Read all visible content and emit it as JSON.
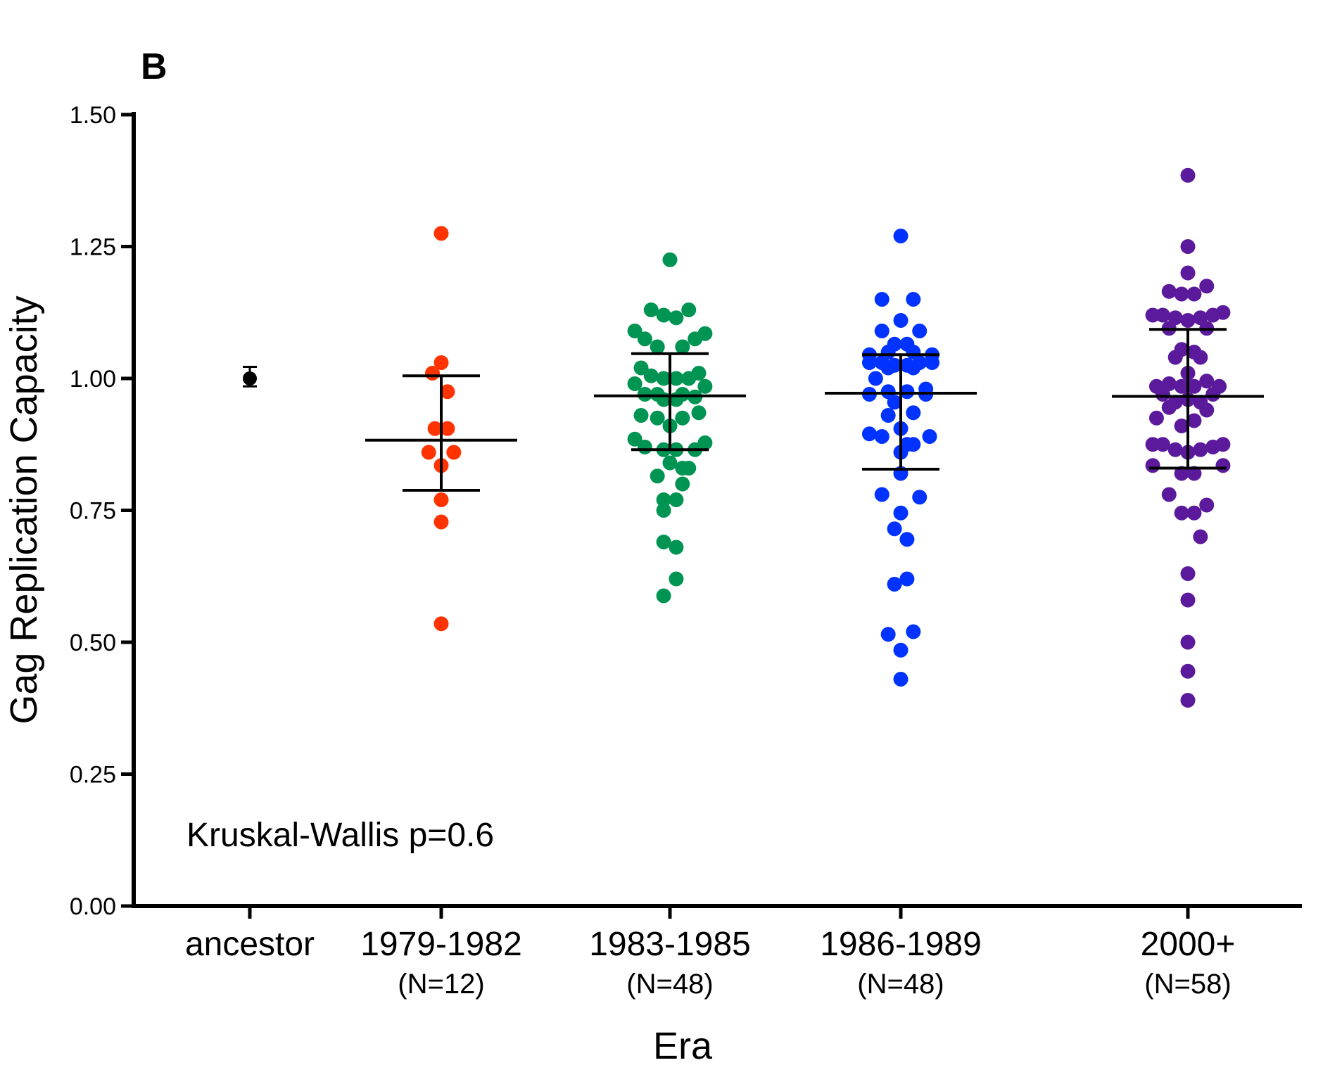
{
  "panel_label": "B",
  "annotation": "Kruskal-Wallis p=0.6",
  "chart_data": {
    "type": "scatter",
    "title": "",
    "xlabel": "Era",
    "ylabel": "Gag Replication Capacity",
    "ylim": [
      0,
      1.5
    ],
    "yticks": [
      "0.00",
      "0.25",
      "0.50",
      "0.75",
      "1.00",
      "1.25",
      "1.50"
    ],
    "grid": false,
    "categories": [
      {
        "label": "ancestor",
        "sublabel": ""
      },
      {
        "label": "1979-1982",
        "sublabel": "(N=12)"
      },
      {
        "label": "1983-1985",
        "sublabel": "(N=48)"
      },
      {
        "label": "1986-1989",
        "sublabel": "(N=48)"
      },
      {
        "label": "2000+",
        "sublabel": "(N=58)"
      }
    ],
    "series": [
      {
        "category": "ancestor",
        "color": "#000000",
        "points": [
          [
            0,
            1.0
          ]
        ],
        "mean": 1.003,
        "err_low": 0.985,
        "err_high": 1.022,
        "error_style": "small"
      },
      {
        "category": "1979-1982",
        "color": "#ff3300",
        "points": [
          [
            0,
            1.275
          ],
          [
            0,
            1.03
          ],
          [
            -0.07,
            1.01
          ],
          [
            0.05,
            0.975
          ],
          [
            -0.05,
            0.905
          ],
          [
            0.05,
            0.905
          ],
          [
            -0.1,
            0.86
          ],
          [
            0.1,
            0.86
          ],
          [
            0,
            0.835
          ],
          [
            0,
            0.77
          ],
          [
            0,
            0.728
          ],
          [
            0,
            0.535
          ]
        ],
        "mean": 0.883,
        "err_low": 0.788,
        "err_high": 1.005
      },
      {
        "category": "1983-1985",
        "color": "#009452",
        "points": [
          [
            0,
            1.225
          ],
          [
            -0.15,
            1.13
          ],
          [
            0.15,
            1.13
          ],
          [
            -0.05,
            1.12
          ],
          [
            0.05,
            1.115
          ],
          [
            -0.28,
            1.09
          ],
          [
            0.28,
            1.085
          ],
          [
            -0.2,
            1.075
          ],
          [
            0.2,
            1.075
          ],
          [
            -0.1,
            1.06
          ],
          [
            0.1,
            1.06
          ],
          [
            -0.23,
            1.02
          ],
          [
            0.23,
            1.01
          ],
          [
            -0.15,
            1.005
          ],
          [
            -0.05,
            1.0
          ],
          [
            0.05,
            1.0
          ],
          [
            0.15,
            1.0
          ],
          [
            -0.28,
            0.99
          ],
          [
            0.28,
            0.985
          ],
          [
            -0.2,
            0.97
          ],
          [
            -0.1,
            0.97
          ],
          [
            0.1,
            0.97
          ],
          [
            0.2,
            0.965
          ],
          [
            -0.05,
            0.96
          ],
          [
            0.05,
            0.96
          ],
          [
            -0.23,
            0.93
          ],
          [
            0.23,
            0.935
          ],
          [
            -0.1,
            0.925
          ],
          [
            0.1,
            0.925
          ],
          [
            0,
            0.91
          ],
          [
            -0.28,
            0.885
          ],
          [
            0.28,
            0.878
          ],
          [
            -0.2,
            0.87
          ],
          [
            0.2,
            0.865
          ],
          [
            -0.05,
            0.865
          ],
          [
            0.05,
            0.865
          ],
          [
            0.1,
            0.83
          ],
          [
            0.15,
            0.83
          ],
          [
            -0.1,
            0.815
          ],
          [
            0,
            0.84
          ],
          [
            -0.05,
            0.77
          ],
          [
            0.05,
            0.77
          ],
          [
            -0.05,
            0.75
          ],
          [
            -0.05,
            0.69
          ],
          [
            0.05,
            0.68
          ],
          [
            0.05,
            0.62
          ],
          [
            -0.05,
            0.588
          ],
          [
            0.1,
            0.8
          ]
        ],
        "mean": 0.967,
        "err_low": 0.865,
        "err_high": 1.047
      },
      {
        "category": "1986-1989",
        "color": "#0033ff",
        "points": [
          [
            0,
            1.27
          ],
          [
            -0.15,
            1.15
          ],
          [
            0.1,
            1.15
          ],
          [
            0,
            1.11
          ],
          [
            -0.15,
            1.09
          ],
          [
            0.15,
            1.09
          ],
          [
            -0.05,
            1.065
          ],
          [
            0.05,
            1.065
          ],
          [
            -0.25,
            1.045
          ],
          [
            0.25,
            1.045
          ],
          [
            -0.1,
            1.05
          ],
          [
            0.1,
            1.05
          ],
          [
            -0.25,
            1.03
          ],
          [
            0.25,
            1.03
          ],
          [
            -0.15,
            1.03
          ],
          [
            0.15,
            1.03
          ],
          [
            -0.05,
            1.025
          ],
          [
            0.05,
            1.025
          ],
          [
            -0.1,
            1.02
          ],
          [
            0.1,
            1.02
          ],
          [
            -0.2,
            1.0
          ],
          [
            0.2,
            0.98
          ],
          [
            -0.1,
            0.975
          ],
          [
            0.05,
            0.975
          ],
          [
            -0.25,
            0.97
          ],
          [
            -0.05,
            0.955
          ],
          [
            -0.1,
            0.93
          ],
          [
            0.1,
            0.935
          ],
          [
            0,
            0.905
          ],
          [
            -0.25,
            0.895
          ],
          [
            0.23,
            0.89
          ],
          [
            -0.15,
            0.89
          ],
          [
            0.1,
            0.875
          ],
          [
            0.05,
            0.875
          ],
          [
            0,
            0.86
          ],
          [
            0,
            0.82
          ],
          [
            -0.15,
            0.78
          ],
          [
            0.15,
            0.775
          ],
          [
            0,
            0.745
          ],
          [
            -0.05,
            0.715
          ],
          [
            0.05,
            0.695
          ],
          [
            0.05,
            0.62
          ],
          [
            -0.05,
            0.61
          ],
          [
            -0.1,
            0.515
          ],
          [
            0.1,
            0.52
          ],
          [
            0,
            0.485
          ],
          [
            0,
            0.43
          ],
          [
            0.2,
            0.97
          ]
        ],
        "mean": 0.972,
        "err_low": 0.828,
        "err_high": 1.045
      },
      {
        "category": "2000+",
        "color": "#5b1a9c",
        "points": [
          [
            0,
            1.385
          ],
          [
            0,
            1.25
          ],
          [
            0,
            1.2
          ],
          [
            -0.15,
            1.165
          ],
          [
            0.15,
            1.175
          ],
          [
            -0.05,
            1.16
          ],
          [
            0.05,
            1.16
          ],
          [
            -0.28,
            1.12
          ],
          [
            0.28,
            1.125
          ],
          [
            -0.2,
            1.12
          ],
          [
            0.2,
            1.12
          ],
          [
            -0.1,
            1.115
          ],
          [
            0.1,
            1.115
          ],
          [
            0,
            1.11
          ],
          [
            -0.15,
            1.095
          ],
          [
            0.15,
            1.095
          ],
          [
            -0.05,
            1.055
          ],
          [
            0.05,
            1.05
          ],
          [
            -0.1,
            1.04
          ],
          [
            0.1,
            1.04
          ],
          [
            0,
            1.01
          ],
          [
            -0.15,
            0.99
          ],
          [
            0.15,
            0.995
          ],
          [
            -0.05,
            0.985
          ],
          [
            0.05,
            0.985
          ],
          [
            -0.25,
            0.985
          ],
          [
            0.25,
            0.985
          ],
          [
            -0.2,
            0.97
          ],
          [
            0.2,
            0.97
          ],
          [
            -0.1,
            0.955
          ],
          [
            0.1,
            0.955
          ],
          [
            0,
            0.96
          ],
          [
            -0.15,
            0.945
          ],
          [
            0.15,
            0.94
          ],
          [
            -0.25,
            0.925
          ],
          [
            0.05,
            0.92
          ],
          [
            -0.05,
            0.91
          ],
          [
            -0.28,
            0.875
          ],
          [
            0.28,
            0.875
          ],
          [
            -0.2,
            0.875
          ],
          [
            0.2,
            0.87
          ],
          [
            -0.1,
            0.865
          ],
          [
            0.1,
            0.865
          ],
          [
            0,
            0.86
          ],
          [
            -0.28,
            0.835
          ],
          [
            0.28,
            0.835
          ],
          [
            -0.05,
            0.82
          ],
          [
            0.05,
            0.82
          ],
          [
            -0.15,
            0.78
          ],
          [
            0.15,
            0.76
          ],
          [
            -0.05,
            0.745
          ],
          [
            0.05,
            0.745
          ],
          [
            0.1,
            0.7
          ],
          [
            0,
            0.63
          ],
          [
            0,
            0.58
          ],
          [
            0,
            0.5
          ],
          [
            0,
            0.445
          ],
          [
            0,
            0.39
          ]
        ],
        "mean": 0.966,
        "err_low": 0.83,
        "err_high": 1.093
      }
    ]
  }
}
